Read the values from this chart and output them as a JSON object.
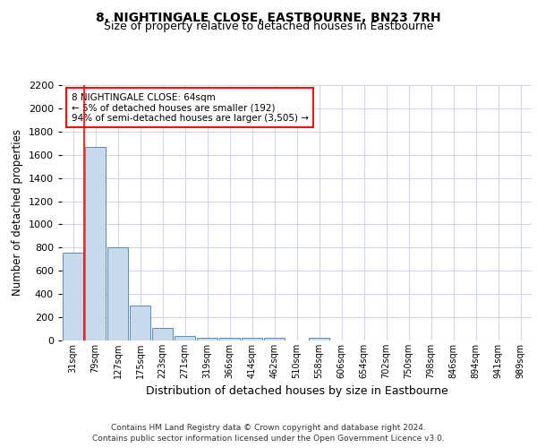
{
  "title": "8, NIGHTINGALE CLOSE, EASTBOURNE, BN23 7RH",
  "subtitle": "Size of property relative to detached houses in Eastbourne",
  "xlabel": "Distribution of detached houses by size in Eastbourne",
  "ylabel": "Number of detached properties",
  "footer_line1": "Contains HM Land Registry data © Crown copyright and database right 2024.",
  "footer_line2": "Contains public sector information licensed under the Open Government Licence v3.0.",
  "annotation_lines": [
    "8 NIGHTINGALE CLOSE: 64sqm",
    "← 5% of detached houses are smaller (192)",
    "94% of semi-detached houses are larger (3,505) →"
  ],
  "bar_labels": [
    "31sqm",
    "79sqm",
    "127sqm",
    "175sqm",
    "223sqm",
    "271sqm",
    "319sqm",
    "366sqm",
    "414sqm",
    "462sqm",
    "510sqm",
    "558sqm",
    "606sqm",
    "654sqm",
    "702sqm",
    "750sqm",
    "798sqm",
    "846sqm",
    "894sqm",
    "941sqm",
    "989sqm"
  ],
  "bar_values": [
    760,
    1670,
    800,
    300,
    110,
    40,
    25,
    20,
    20,
    20,
    0,
    25,
    0,
    0,
    0,
    0,
    0,
    0,
    0,
    0,
    0
  ],
  "bar_color": "#c9d9ec",
  "bar_edge_color": "#5b8db8",
  "ylim": [
    0,
    2200
  ],
  "yticks": [
    0,
    200,
    400,
    600,
    800,
    1000,
    1200,
    1400,
    1600,
    1800,
    2000,
    2200
  ],
  "background_color": "#ffffff",
  "grid_color": "#d0d8e8",
  "title_fontsize": 10,
  "subtitle_fontsize": 9
}
